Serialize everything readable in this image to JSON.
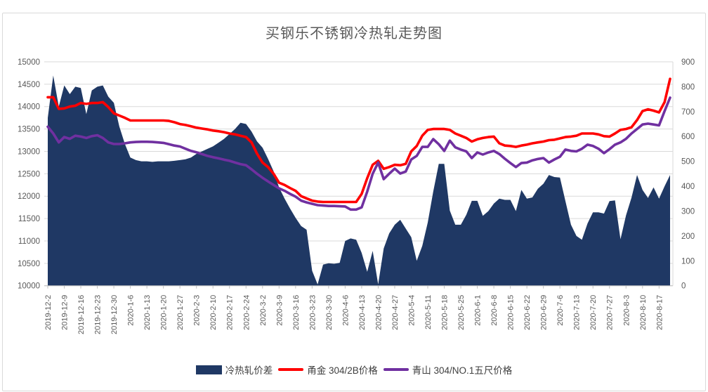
{
  "title": "买钢乐不锈钢冷热轧走势图",
  "chart_data": {
    "type": "combo (area + line, dual axis)",
    "title": "买钢乐不锈钢冷热轧走势图",
    "grid": true,
    "legend_position": "bottom",
    "points_per_label": 3,
    "colors": {
      "grid": "#d9d9d9",
      "axis": "#bfbfbf",
      "text": "#595959"
    },
    "left_axis": {
      "min": 10000,
      "max": 15000,
      "step": 500,
      "ticks": [
        10000,
        10500,
        11000,
        11500,
        12000,
        12500,
        13000,
        13500,
        14000,
        14500,
        15000
      ]
    },
    "right_axis": {
      "min": 0,
      "max": 900,
      "step": 100,
      "ticks": [
        0,
        100,
        200,
        300,
        400,
        500,
        600,
        700,
        800,
        900
      ]
    },
    "x_labels": [
      "2019-12-2",
      "2019-12-9",
      "2019-12-16",
      "2019-12-23",
      "2019-12-30",
      "2020-1-6",
      "2020-1-13",
      "2020-1-20",
      "2020-1-27",
      "2020-2-3",
      "2020-2-10",
      "2020-2-17",
      "2020-2-24",
      "2020-3-2",
      "2020-3-9",
      "2020-3-16",
      "2020-3-23",
      "2020-3-30",
      "2020-4-6",
      "2020-4-13",
      "2020-4-20",
      "2020-4-27",
      "2020-5-4",
      "2020-5-11",
      "2020-5-18",
      "2020-5-25",
      "2020-6-1",
      "2020-6-8",
      "2020-6-15",
      "2020-6-22",
      "2020-6-29",
      "2020-7-6",
      "2020-7-13",
      "2020-7-20",
      "2020-7-27",
      "2020-8-3",
      "2020-8-10",
      "2020-8-17"
    ],
    "series": [
      {
        "name": "冷热轧价差",
        "type": "area",
        "axis": "right",
        "color": "#1F3864",
        "values": [
          675,
          845,
          720,
          805,
          770,
          800,
          795,
          690,
          785,
          800,
          805,
          760,
          735,
          640,
          570,
          515,
          505,
          500,
          500,
          498,
          500,
          500,
          500,
          502,
          505,
          508,
          515,
          530,
          540,
          550,
          560,
          575,
          590,
          610,
          630,
          655,
          650,
          620,
          580,
          555,
          510,
          460,
          395,
          350,
          310,
          273,
          240,
          225,
          60,
          5,
          85,
          90,
          88,
          92,
          180,
          190,
          185,
          132,
          56,
          140,
          5,
          150,
          210,
          245,
          265,
          230,
          195,
          100,
          160,
          254,
          378,
          490,
          490,
          302,
          245,
          245,
          285,
          341,
          341,
          281,
          300,
          330,
          350,
          345,
          345,
          300,
          385,
          350,
          355,
          390,
          410,
          445,
          437,
          435,
          340,
          245,
          200,
          185,
          250,
          295,
          295,
          290,
          340,
          343,
          187,
          283,
          354,
          445,
          385,
          353,
          395,
          350,
          400,
          445
        ]
      },
      {
        "name": "甬金 304/2B价格",
        "type": "line",
        "axis": "left",
        "color": "#FF0000",
        "values": [
          14210,
          14210,
          13950,
          13960,
          14000,
          14020,
          14080,
          14060,
          14080,
          14080,
          14100,
          13990,
          13850,
          13800,
          13750,
          13690,
          13690,
          13690,
          13690,
          13690,
          13690,
          13690,
          13680,
          13650,
          13610,
          13590,
          13560,
          13530,
          13510,
          13490,
          13465,
          13450,
          13430,
          13400,
          13380,
          13350,
          13320,
          13200,
          12950,
          12750,
          12650,
          12500,
          12300,
          12250,
          12180,
          12120,
          12000,
          11950,
          11900,
          11880,
          11870,
          11870,
          11870,
          11870,
          11870,
          11870,
          11870,
          12050,
          12400,
          12700,
          12790,
          12610,
          12650,
          12700,
          12690,
          12720,
          13000,
          13120,
          13350,
          13480,
          13500,
          13500,
          13500,
          13480,
          13400,
          13350,
          13300,
          13220,
          13270,
          13300,
          13320,
          13330,
          13180,
          13130,
          13120,
          13100,
          13130,
          13150,
          13180,
          13200,
          13220,
          13250,
          13260,
          13290,
          13320,
          13330,
          13350,
          13400,
          13400,
          13400,
          13380,
          13340,
          13330,
          13400,
          13480,
          13500,
          13540,
          13700,
          13900,
          13940,
          13910,
          13870,
          14100,
          14620
        ]
      },
      {
        "name": "青山 304/NO.1五尺价格",
        "type": "line",
        "axis": "left",
        "color": "#7030A0",
        "values": [
          13550,
          13400,
          13200,
          13320,
          13280,
          13350,
          13330,
          13300,
          13340,
          13360,
          13300,
          13200,
          13165,
          13165,
          13180,
          13200,
          13210,
          13215,
          13215,
          13210,
          13200,
          13190,
          13160,
          13130,
          13110,
          13060,
          13010,
          12980,
          12940,
          12900,
          12870,
          12845,
          12815,
          12790,
          12750,
          12715,
          12690,
          12600,
          12500,
          12410,
          12330,
          12250,
          12175,
          12120,
          12050,
          11990,
          11900,
          11860,
          11830,
          11800,
          11790,
          11780,
          11780,
          11775,
          11770,
          11700,
          11700,
          11750,
          12100,
          12500,
          12750,
          12380,
          12500,
          12615,
          12505,
          12550,
          12820,
          12900,
          13100,
          13100,
          13275,
          13160,
          13010,
          13240,
          13090,
          13040,
          13000,
          12851,
          12976,
          12929,
          12976,
          13010,
          12940,
          12835,
          12740,
          12650,
          12740,
          12750,
          12800,
          12830,
          12850,
          12750,
          12820,
          12880,
          13040,
          13010,
          13000,
          13060,
          13150,
          13120,
          13060,
          12960,
          13050,
          13150,
          13200,
          13280,
          13400,
          13500,
          13600,
          13620,
          13600,
          13580,
          13900,
          14200
        ]
      }
    ]
  }
}
